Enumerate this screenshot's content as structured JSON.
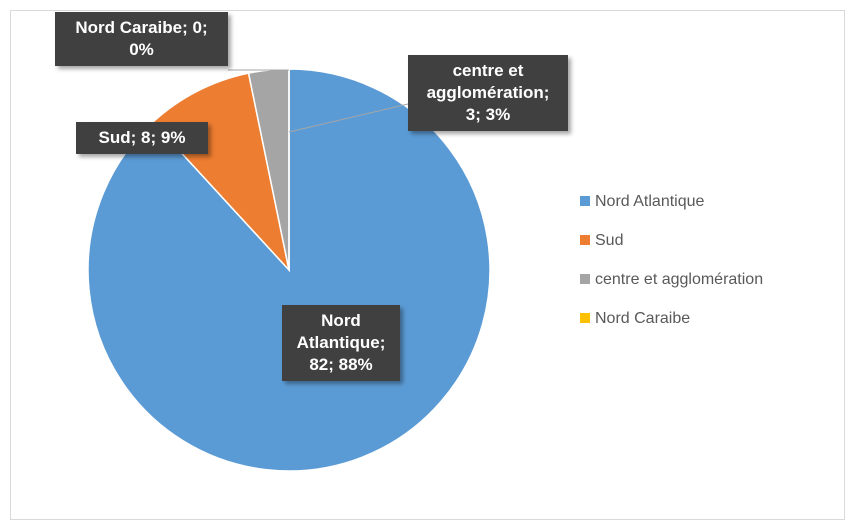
{
  "chart_data": {
    "type": "pie",
    "categories": [
      "Nord Atlantique",
      "Sud",
      "centre et agglomération",
      "Nord Caraibe"
    ],
    "values": [
      82,
      8,
      3,
      0
    ],
    "value_labels": [
      "Nord Atlantique; 82; 88%",
      "Sud; 8; 9%",
      "centre et agglomération; 3; 3%",
      "Nord Caraibe; 0; 0%"
    ],
    "colors": [
      "#5b9bd5",
      "#ed7d31",
      "#a5a5a5",
      "#ffc000"
    ],
    "legend": "right"
  }
}
